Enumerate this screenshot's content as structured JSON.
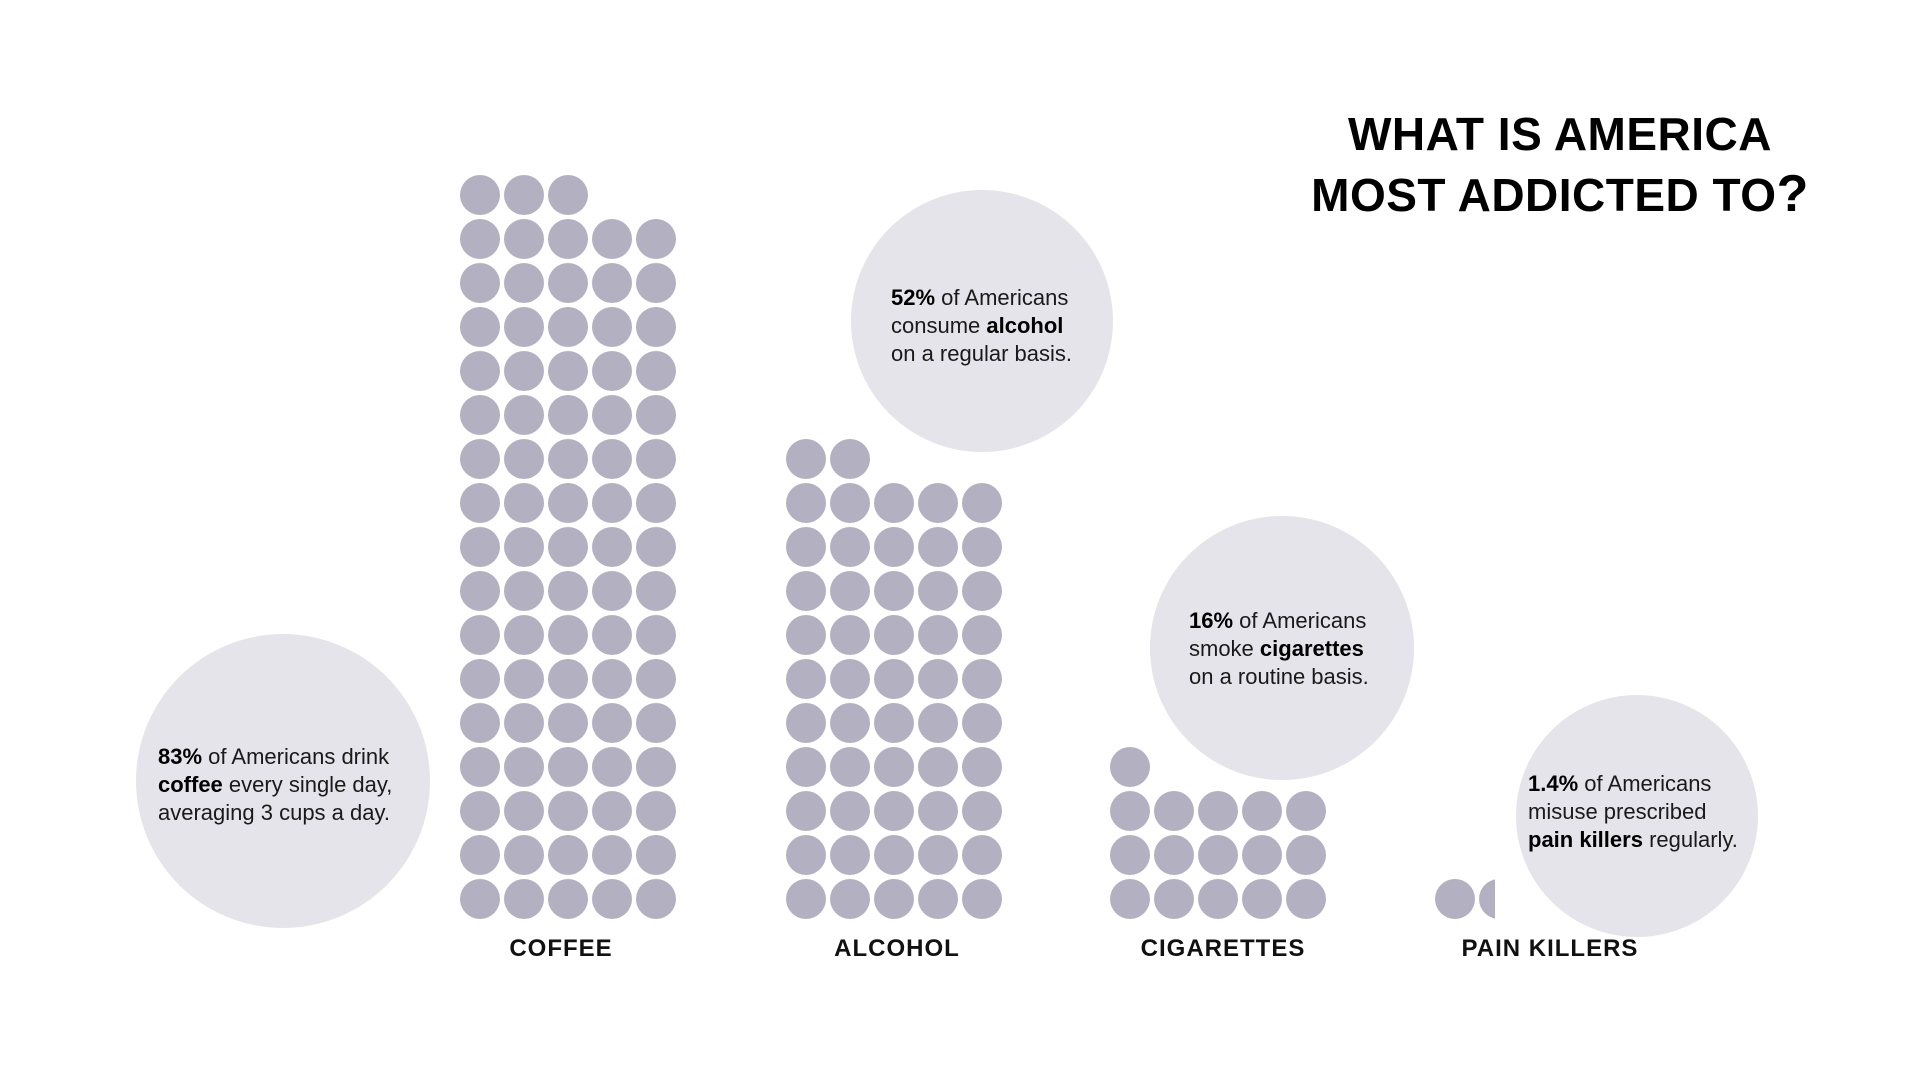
{
  "title": {
    "line1": "WHAT IS AMERICA",
    "line2": "MOST ADDICTED TO",
    "mark": "?"
  },
  "colors": {
    "dot": "#b3b1c1",
    "bubble": "#e4e4ea",
    "text": "#111111"
  },
  "chart_data": {
    "type": "pictograph",
    "title": "WHAT IS AMERICA MOST ADDICTED TO?",
    "unit_note": "each dot ≈ 1%",
    "categories": [
      "COFFEE",
      "ALCOHOL",
      "CIGARETTES",
      "PAIN KILLERS"
    ],
    "values": [
      83,
      52,
      16,
      1.4
    ],
    "dots_per_row": 5,
    "annotations": [
      {
        "category": "COFFEE",
        "pct": "83%",
        "pre": " of Americans drink",
        "keyword": "coffee",
        "post": " every single day,",
        "line3": "averaging 3 cups a day."
      },
      {
        "category": "ALCOHOL",
        "pct": "52%",
        "pre": " of Americans",
        "line2_pre": "consume ",
        "keyword": "alcohol",
        "line3": "on a regular basis."
      },
      {
        "category": "CIGARETTES",
        "pct": "16%",
        "pre": " of Americans",
        "line2_pre": "smoke ",
        "keyword": "cigarettes",
        "line3": "on a routine basis."
      },
      {
        "category": "PAIN KILLERS",
        "pct": "1.4%",
        "pre": " of Americans",
        "line2": "misuse prescribed",
        "keyword": "pain killers",
        "post": " regularly."
      }
    ]
  }
}
